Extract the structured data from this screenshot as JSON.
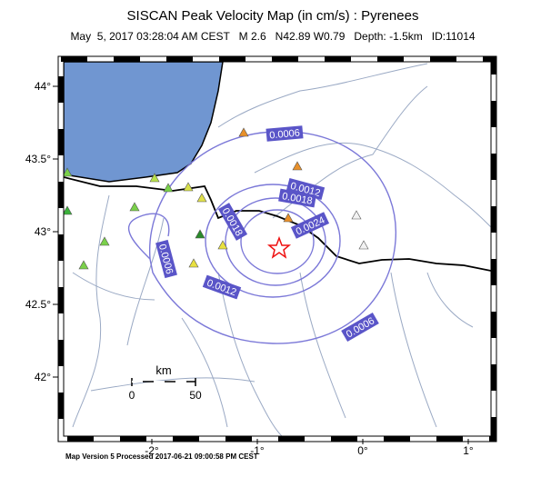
{
  "header": {
    "title": "SISCAN Peak Velocity Map (in cm/s) : Pyrenees",
    "subtitle": "May  5, 2017 03:28:04 AM CEST   M 2.6   N42.89 W0.79   Depth: -1.5km   ID:11014"
  },
  "map": {
    "lon_ticks": [
      {
        "value": -2,
        "label": "-2°"
      },
      {
        "value": -1,
        "label": "-1°"
      },
      {
        "value": 0,
        "label": "0°"
      },
      {
        "value": 1,
        "label": "1°"
      }
    ],
    "lat_ticks": [
      {
        "value": 44,
        "label": "44°"
      },
      {
        "value": 43.5,
        "label": "43.5°"
      },
      {
        "value": 43,
        "label": "43°"
      },
      {
        "value": 42.5,
        "label": "42.5°"
      },
      {
        "value": 42,
        "label": "42°"
      }
    ],
    "contour_labels": [
      "0.0006",
      "0.0006",
      "0.0006",
      "0.0012",
      "0.0012",
      "0.0018",
      "0.0018",
      "0.0024"
    ],
    "scale_bar": {
      "unit": "km",
      "labels": [
        "0",
        "50"
      ]
    }
  },
  "footer": "Map Version 5 Processed 2017-06-21 09:00:58 PM CEST"
}
